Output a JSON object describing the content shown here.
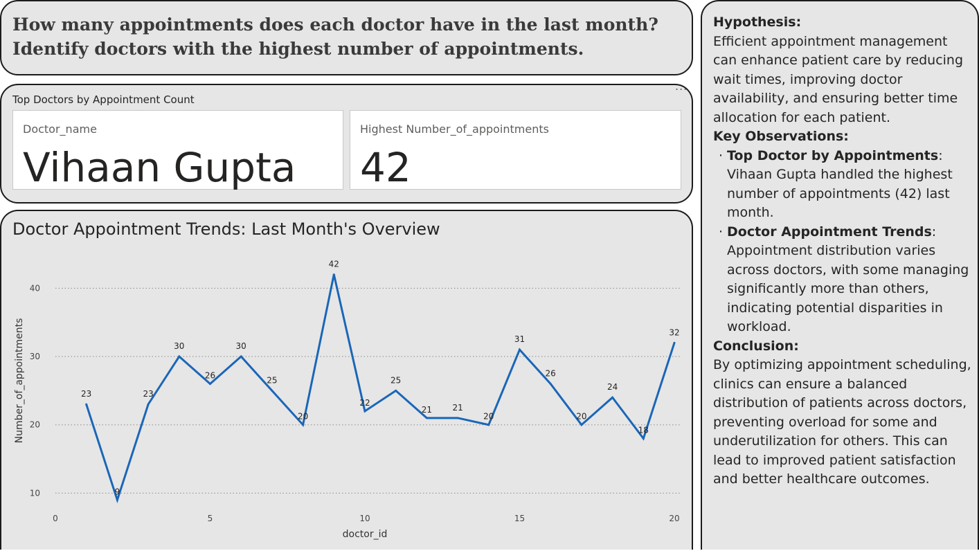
{
  "question": "How many appointments does each doctor have in the last month?\nIdentify doctors with the highest number of appointments.",
  "kpi": {
    "title": "Top Doctors by Appointment Count",
    "doctor_label": "Doctor_name",
    "doctor_value": "Vihaan Gupta",
    "count_label": "Highest Number_of_appointments",
    "count_value": "42",
    "more_options": "..."
  },
  "notes": {
    "hypothesis_heading": "Hypothesis:",
    "hypothesis_text": "Efficient appointment management can enhance patient care by reducing wait times, improving doctor availability, and ensuring better time allocation for each patient.",
    "observations_heading": "Key Observations:",
    "observations": [
      {
        "title": "Top Doctor by Appointments",
        "text": "Vihaan Gupta handled the highest number of appointments (42) last month."
      },
      {
        "title": "Doctor Appointment Trends",
        "text": "Appointment distribution varies across doctors, with some managing significantly more than others, indicating potential disparities in workload."
      }
    ],
    "conclusion_heading": "Conclusion:",
    "conclusion_text": "By optimizing appointment scheduling, clinics can ensure a balanced distribution of patients across doctors, preventing overload for some and underutilization for others. This can lead to improved patient satisfaction and better healthcare outcomes."
  },
  "chart_data": {
    "type": "line",
    "title": "Doctor Appointment Trends: Last Month's Overview",
    "xlabel": "doctor_id",
    "ylabel": "Number_of_appointments",
    "x": [
      1,
      2,
      3,
      4,
      5,
      6,
      7,
      8,
      9,
      10,
      11,
      12,
      13,
      14,
      15,
      16,
      17,
      18,
      19,
      20
    ],
    "series": [
      {
        "values": [
          23,
          9,
          23,
          30,
          26,
          30,
          25,
          20,
          42,
          22,
          25,
          21,
          21,
          20,
          31,
          26,
          20,
          24,
          18,
          32
        ]
      }
    ],
    "xlim": [
      0,
      20
    ],
    "ylim": [
      7,
      45
    ],
    "x_ticks": [
      0,
      5,
      10,
      15,
      20
    ],
    "y_ticks": [
      10,
      20,
      30,
      40
    ],
    "grid": "horizontal dotted",
    "data_labels": true,
    "line_color": "#1a66b8"
  }
}
